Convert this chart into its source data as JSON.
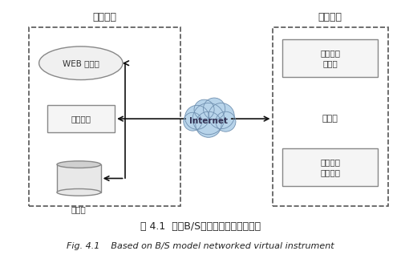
{
  "bg_color": "#ffffff",
  "title_cn": "图 4.1  基于B/S模式的网络化虚拟仪器",
  "title_en": "Fig. 4.1    Based on B/S model networked virtual instrument",
  "server_label": "服务器端",
  "browser_label": "浏览器端",
  "web_server_text": "WEB 服务器",
  "virtual_inst_text": "虚拟仪器",
  "database_text": "数据库",
  "internet_text": "Internet",
  "virt_client_text": "虚拟仪器\n客户端",
  "browser_text": "浏览器",
  "user_interact_text": "用户交互\n结果显示",
  "dashed_border_color": "#555555",
  "box_border_color": "#888888",
  "arrow_color": "#111111",
  "line_color": "#111111",
  "text_color": "#333333",
  "cloud_blue": "#a8c8e8"
}
